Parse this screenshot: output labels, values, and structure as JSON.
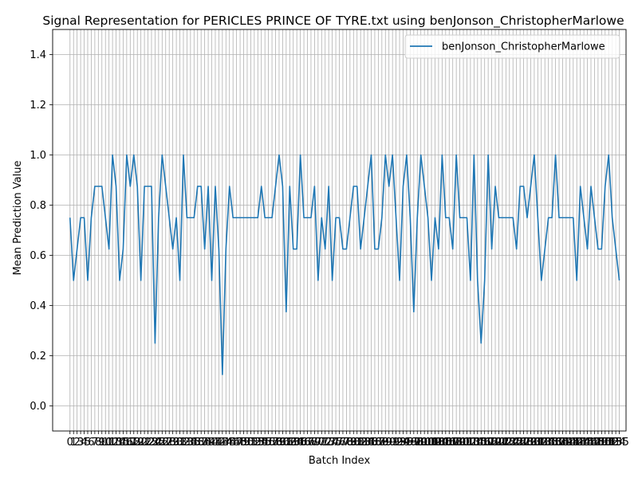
{
  "chart_data": {
    "type": "line",
    "title": "Signal Representation for PERICLES PRINCE OF TYRE.txt using benJonson_ChristopherMarlowe",
    "xlabel": "Batch Index",
    "ylabel": "Mean Prediction Value",
    "xlim": [
      -4.9,
      156.9
    ],
    "ylim": [
      -0.1,
      1.5
    ],
    "yticks": [
      "0.0",
      "0.2",
      "0.4",
      "0.6",
      "0.8",
      "1.0",
      "1.2",
      "1.4"
    ],
    "grid": true,
    "legend_position": "top-right",
    "series_color": "#1f77b4",
    "series": [
      {
        "name": "benJonson_ChristopherMarlowe",
        "values": [
          0.75,
          0.5,
          0.625,
          0.75,
          0.75,
          0.5,
          0.75,
          0.875,
          0.875,
          0.875,
          0.75,
          0.625,
          1.0,
          0.875,
          0.5,
          0.625,
          1.0,
          0.875,
          1.0,
          0.875,
          0.5,
          0.875,
          0.875,
          0.875,
          0.25,
          0.75,
          1.0,
          0.875,
          0.75,
          0.625,
          0.75,
          0.5,
          1.0,
          0.75,
          0.75,
          0.75,
          0.875,
          0.875,
          0.625,
          0.875,
          0.5,
          0.875,
          0.625,
          0.125,
          0.625,
          0.875,
          0.75,
          0.75,
          0.75,
          0.75,
          0.75,
          0.75,
          0.75,
          0.75,
          0.875,
          0.75,
          0.75,
          0.75,
          0.875,
          1.0,
          0.875,
          0.375,
          0.875,
          0.625,
          0.625,
          1.0,
          0.75,
          0.75,
          0.75,
          0.875,
          0.5,
          0.75,
          0.625,
          0.875,
          0.5,
          0.75,
          0.75,
          0.625,
          0.625,
          0.75,
          0.875,
          0.875,
          0.625,
          0.75,
          0.875,
          1.0,
          0.625,
          0.625,
          0.75,
          1.0,
          0.875,
          1.0,
          0.75,
          0.5,
          0.875,
          1.0,
          0.75,
          0.375,
          0.75,
          1.0,
          0.875,
          0.75,
          0.5,
          0.75,
          0.625,
          1.0,
          0.75,
          0.75,
          0.625,
          1.0,
          0.75,
          0.75,
          0.75,
          0.5,
          1.0,
          0.5,
          0.25,
          0.5,
          1.0,
          0.625,
          0.875,
          0.75,
          0.75,
          0.75,
          0.75,
          0.75,
          0.625,
          0.875,
          0.875,
          0.75,
          0.875,
          1.0,
          0.75,
          0.5,
          0.625,
          0.75,
          0.75,
          1.0,
          0.75,
          0.75,
          0.75,
          0.75,
          0.75,
          0.5,
          0.875,
          0.75,
          0.625,
          0.875,
          0.75,
          0.625,
          0.625,
          0.875,
          1.0,
          0.75,
          0.625,
          0.5
        ]
      }
    ]
  }
}
